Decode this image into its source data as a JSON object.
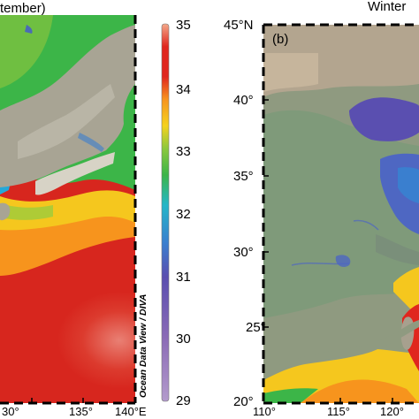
{
  "panel_a": {
    "title_fragment": "tember)",
    "x_ticks": [
      "30°",
      "135°",
      "140°E"
    ],
    "credit": "Ocean Data View / DIVA"
  },
  "panel_b": {
    "season": "Winter",
    "label": "(b)",
    "y_ticks": [
      "45°N",
      "40°",
      "35°",
      "30°",
      "25°",
      "20°"
    ],
    "x_ticks": [
      "110°",
      "115°",
      "120°"
    ]
  },
  "colorbar": {
    "ticks": [
      "35",
      "34",
      "33",
      "32",
      "31",
      "30",
      "29"
    ],
    "min": 29,
    "max": 35,
    "colors": [
      "#9a72b8",
      "#5a4fb0",
      "#3a7fcf",
      "#25b6c8",
      "#3cb548",
      "#8cc83c",
      "#f5d21e",
      "#f7941d",
      "#e0261e",
      "#e0261e"
    ]
  },
  "colors": {
    "land": "#9f9a8c",
    "sea_red": "#d7261e",
    "sea_green": "#3cb548"
  }
}
